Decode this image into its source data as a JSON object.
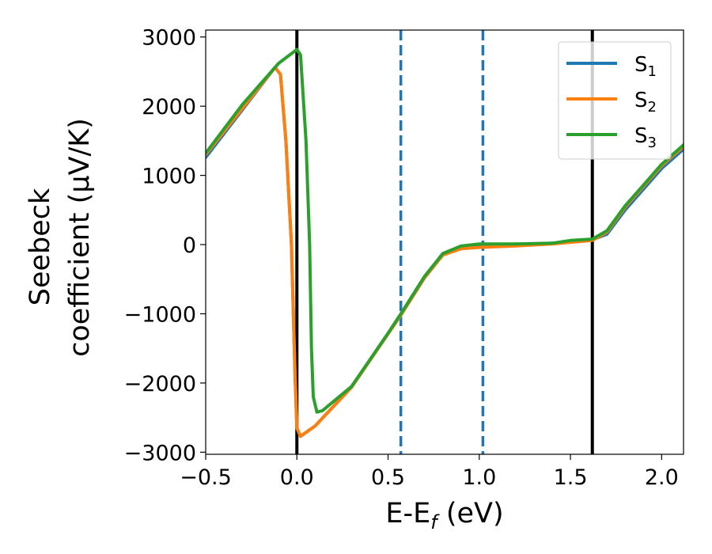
{
  "chart_data": {
    "type": "line",
    "xlabel": "E-E",
    "xlabel_sub": "f",
    "xlabel_unit": " (eV)",
    "ylabel_line1": "Seebeck",
    "ylabel_line2": "coefficient  (μV/K)",
    "xlim": [
      -0.5,
      2.12
    ],
    "ylim": [
      -3030,
      3100
    ],
    "x_ticks": [
      -0.5,
      0.0,
      0.5,
      1.0,
      1.5,
      2.0
    ],
    "x_tick_labels": [
      "−0.5",
      "0.0",
      "0.5",
      "1.0",
      "1.5",
      "2.0"
    ],
    "y_ticks": [
      3000,
      2000,
      1000,
      0,
      -1000,
      -2000,
      -3000
    ],
    "y_tick_labels": [
      "3000",
      "2000",
      "1000",
      "0",
      "−1000",
      "−2000",
      "−3000"
    ],
    "grid": false,
    "legend_position": "top-right",
    "vertical_lines": [
      {
        "x": 0.0,
        "style": "solid",
        "color": "#000000"
      },
      {
        "x": 1.62,
        "style": "solid",
        "color": "#000000"
      },
      {
        "x": 0.57,
        "style": "dashed",
        "color": "#1f77b4"
      },
      {
        "x": 1.02,
        "style": "dashed",
        "color": "#1f77b4"
      }
    ],
    "series": [
      {
        "name": "S",
        "name_sub": "1",
        "color": "#1f77b4",
        "points": [
          [
            -0.5,
            1260
          ],
          [
            -0.12,
            2560
          ],
          [
            -0.09,
            2460
          ],
          [
            -0.06,
            1500
          ],
          [
            -0.03,
            0
          ],
          [
            -0.01,
            -1900
          ],
          [
            0.0,
            -2650
          ],
          [
            0.02,
            -2770
          ],
          [
            0.1,
            -2620
          ],
          [
            0.3,
            -2060
          ],
          [
            0.5,
            -1290
          ],
          [
            0.57,
            -1020
          ],
          [
            0.7,
            -480
          ],
          [
            0.8,
            -150
          ],
          [
            0.9,
            -40
          ],
          [
            1.0,
            -30
          ],
          [
            1.2,
            -10
          ],
          [
            1.4,
            20
          ],
          [
            1.62,
            70
          ],
          [
            1.7,
            150
          ],
          [
            1.8,
            500
          ],
          [
            1.9,
            800
          ],
          [
            2.0,
            1100
          ],
          [
            2.12,
            1380
          ]
        ]
      },
      {
        "name": "S",
        "name_sub": "2",
        "color": "#ff7f0e",
        "points": [
          [
            -0.5,
            1300
          ],
          [
            -0.12,
            2560
          ],
          [
            -0.09,
            2460
          ],
          [
            -0.06,
            1500
          ],
          [
            -0.03,
            0
          ],
          [
            -0.01,
            -1900
          ],
          [
            0.0,
            -2650
          ],
          [
            0.02,
            -2770
          ],
          [
            0.1,
            -2620
          ],
          [
            0.3,
            -2060
          ],
          [
            0.5,
            -1290
          ],
          [
            0.57,
            -1020
          ],
          [
            0.7,
            -480
          ],
          [
            0.8,
            -150
          ],
          [
            0.9,
            -60
          ],
          [
            1.0,
            -40
          ],
          [
            1.2,
            -20
          ],
          [
            1.4,
            10
          ],
          [
            1.62,
            60
          ],
          [
            1.7,
            180
          ],
          [
            1.8,
            540
          ],
          [
            1.9,
            840
          ],
          [
            2.0,
            1140
          ],
          [
            2.12,
            1420
          ]
        ]
      },
      {
        "name": "S",
        "name_sub": "3",
        "color": "#2ca02c",
        "points": [
          [
            -0.5,
            1320
          ],
          [
            -0.3,
            2020
          ],
          [
            -0.1,
            2620
          ],
          [
            0.0,
            2820
          ],
          [
            0.02,
            2740
          ],
          [
            0.05,
            1500
          ],
          [
            0.07,
            0
          ],
          [
            0.08,
            -1500
          ],
          [
            0.09,
            -2200
          ],
          [
            0.11,
            -2420
          ],
          [
            0.14,
            -2400
          ],
          [
            0.3,
            -2050
          ],
          [
            0.5,
            -1280
          ],
          [
            0.57,
            -1000
          ],
          [
            0.7,
            -460
          ],
          [
            0.8,
            -130
          ],
          [
            0.9,
            -20
          ],
          [
            1.0,
            10
          ],
          [
            1.2,
            10
          ],
          [
            1.4,
            20
          ],
          [
            1.5,
            60
          ],
          [
            1.62,
            80
          ],
          [
            1.7,
            200
          ],
          [
            1.8,
            560
          ],
          [
            1.9,
            860
          ],
          [
            2.0,
            1160
          ],
          [
            2.12,
            1440
          ]
        ]
      }
    ]
  }
}
